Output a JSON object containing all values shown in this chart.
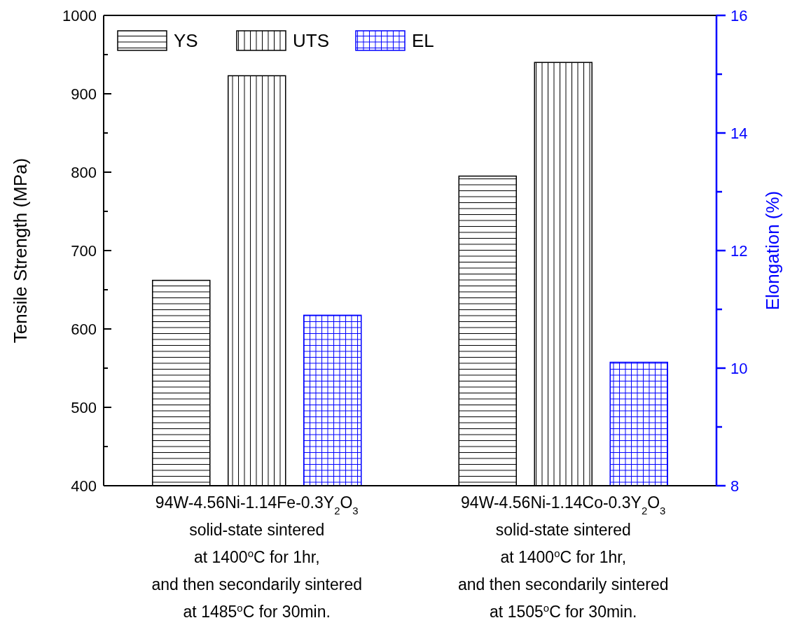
{
  "chart_data": {
    "type": "bar",
    "ylabel": "Tensile Strength (MPa)",
    "y2label": "Elongation (%)",
    "categories": [
      "94W-4.56Ni-1.14Fe-0.3Y$_{2}$O$_{3}$\nsolid-state sintered\nat 1400$^{o}$C for 1hr,\nand then secondarily sintered\nat 1485$^{o}$C for 30min.",
      "94W-4.56Ni-1.14Co-0.3Y$_{2}$O$_{3}$\nsolid-state sintered\nat 1400$^{o}$C for 1hr,\nand then secondarily sintered\nat 1505$^{o}$C for 30min."
    ],
    "series": [
      {
        "name": "YS",
        "color": "#000000",
        "values": [
          662,
          795
        ]
      },
      {
        "name": "UTS",
        "color": "#000000",
        "values": [
          923,
          940
        ]
      },
      {
        "name": "EL",
        "color": "#0000ff",
        "values": [
          10.9,
          10.1
        ],
        "axis": "y2"
      }
    ],
    "ylim": [
      400,
      1000
    ],
    "yticks": [
      400,
      {
        "value": 450,
        "label": null
      },
      500,
      {
        "value": 550,
        "label": null
      },
      600,
      {
        "value": 650,
        "label": null
      },
      700,
      {
        "value": 750,
        "label": null
      },
      800,
      {
        "value": 850,
        "label": null
      },
      900,
      {
        "value": 950,
        "label": null
      },
      1000
    ],
    "y2lim": [
      8,
      16
    ],
    "y2ticks": [
      8,
      {
        "value": 9,
        "label": null
      },
      10,
      {
        "value": 11,
        "label": null
      },
      12,
      {
        "value": 13,
        "label": null
      },
      14,
      {
        "value": 15,
        "label": null
      },
      16
    ],
    "legend": "top left",
    "grid": false
  }
}
